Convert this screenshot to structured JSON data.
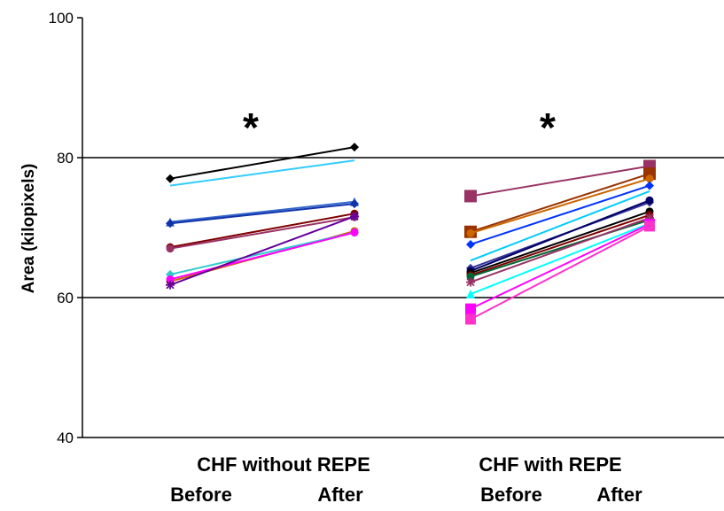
{
  "chart_data": {
    "type": "line",
    "title": "",
    "ylabel": "Area (kilopixels)",
    "xlabel": "",
    "ylim": [
      40,
      100
    ],
    "yticks": [
      40,
      60,
      80,
      100
    ],
    "grid_lines": [
      60,
      80
    ],
    "x_labels": [
      "Before",
      "After",
      "Before",
      "After"
    ],
    "groups": [
      {
        "label": "CHF without REPE",
        "significance": "*",
        "series": [
          {
            "color": "#000000",
            "marker": "diamond",
            "values": [
              77.0,
              81.5
            ]
          },
          {
            "color": "#33ccff",
            "marker": "none",
            "values": [
              76.0,
              79.6
            ]
          },
          {
            "color": "#3366cc",
            "marker": "triangle",
            "values": [
              70.8,
              73.7
            ]
          },
          {
            "color": "#1133aa",
            "marker": "diamond",
            "values": [
              70.6,
              73.4
            ]
          },
          {
            "color": "#800000",
            "marker": "circle",
            "values": [
              67.2,
              72.0
            ]
          },
          {
            "color": "#993366",
            "marker": "circle",
            "values": [
              67.0,
              71.5
            ]
          },
          {
            "color": "#cc6600",
            "marker": "circle",
            "values": [
              62.3,
              69.5
            ]
          },
          {
            "color": "#33cccc",
            "marker": "diamond",
            "values": [
              63.3,
              69.3
            ]
          },
          {
            "color": "#ff00ff",
            "marker": "circle",
            "values": [
              62.6,
              69.3
            ]
          },
          {
            "color": "#660099",
            "marker": "asterisk",
            "values": [
              61.8,
              71.6
            ]
          }
        ]
      },
      {
        "label": "CHF with REPE",
        "significance": "*",
        "series": [
          {
            "color": "#993366",
            "marker": "square",
            "values": [
              74.5,
              78.8
            ]
          },
          {
            "color": "#993300",
            "marker": "square",
            "values": [
              69.4,
              77.7
            ]
          },
          {
            "color": "#cc6600",
            "marker": "circle",
            "values": [
              69.2,
              77.0
            ]
          },
          {
            "color": "#0033ff",
            "marker": "diamond",
            "values": [
              67.6,
              76.0
            ]
          },
          {
            "color": "#00ccff",
            "marker": "none",
            "values": [
              65.3,
              75.2
            ]
          },
          {
            "color": "#333399",
            "marker": "diamond",
            "values": [
              64.2,
              73.6
            ]
          },
          {
            "color": "#000066",
            "marker": "circle",
            "values": [
              63.8,
              73.9
            ]
          },
          {
            "color": "#000000",
            "marker": "circle",
            "values": [
              63.5,
              72.3
            ]
          },
          {
            "color": "#800000",
            "marker": "circle",
            "values": [
              63.2,
              71.8
            ]
          },
          {
            "color": "#006633",
            "marker": "circle",
            "values": [
              63.0,
              71.1
            ]
          },
          {
            "color": "#993366",
            "marker": "asterisk",
            "values": [
              62.2,
              71.4
            ]
          },
          {
            "color": "#00ffff",
            "marker": "triangle",
            "values": [
              60.5,
              70.6
            ]
          },
          {
            "color": "#ff00ff",
            "marker": "square",
            "values": [
              58.4,
              70.5
            ]
          },
          {
            "color": "#ff33cc",
            "marker": "square",
            "values": [
              56.9,
              70.2
            ]
          }
        ]
      }
    ]
  }
}
